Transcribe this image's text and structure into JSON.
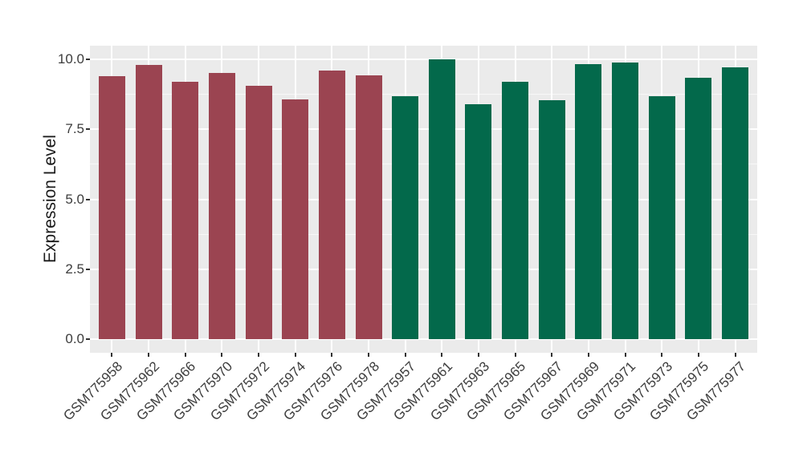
{
  "chart_data": {
    "type": "bar",
    "title": "",
    "xlabel": "",
    "ylabel": "Expression Level",
    "ylim": [
      -0.5,
      10.5
    ],
    "ytick_values": [
      0,
      2.5,
      5,
      7.5,
      10
    ],
    "ytick_labels": [
      "0.0",
      "2.5",
      "5.0",
      "7.5",
      "10.0"
    ],
    "minor_gridline_values": [
      1.25,
      3.75,
      6.25,
      8.75
    ],
    "grid": "on",
    "legend_position": "none",
    "categories": [
      "GSM775958",
      "GSM775962",
      "GSM775966",
      "GSM775970",
      "GSM775972",
      "GSM775974",
      "GSM775976",
      "GSM775978",
      "GSM775957",
      "GSM775961",
      "GSM775963",
      "GSM775965",
      "GSM775967",
      "GSM775969",
      "GSM775971",
      "GSM775973",
      "GSM775975",
      "GSM775977"
    ],
    "values": [
      9.4,
      9.82,
      9.22,
      9.51,
      9.05,
      8.59,
      9.6,
      9.45,
      8.68,
      10.0,
      8.39,
      9.22,
      8.56,
      9.85,
      9.9,
      8.7,
      9.34,
      9.73
    ],
    "bar_colors": [
      "#9B4451",
      "#9B4451",
      "#9B4451",
      "#9B4451",
      "#9B4451",
      "#9B4451",
      "#9B4451",
      "#9B4451",
      "#03694B",
      "#03694B",
      "#03694B",
      "#03694B",
      "#03694B",
      "#03694B",
      "#03694B",
      "#03694B",
      "#03694B",
      "#03694B"
    ]
  },
  "style": {
    "figure_background": "#FFFFFF",
    "panel_background": "#EBEBEB",
    "grid_major_color": "#FFFFFF",
    "grid_minor_color": "#FFFFFF",
    "tick_color": "#333333",
    "axis_text_color": "#3D3D3D",
    "axis_title_color": "#1A1A1A"
  }
}
